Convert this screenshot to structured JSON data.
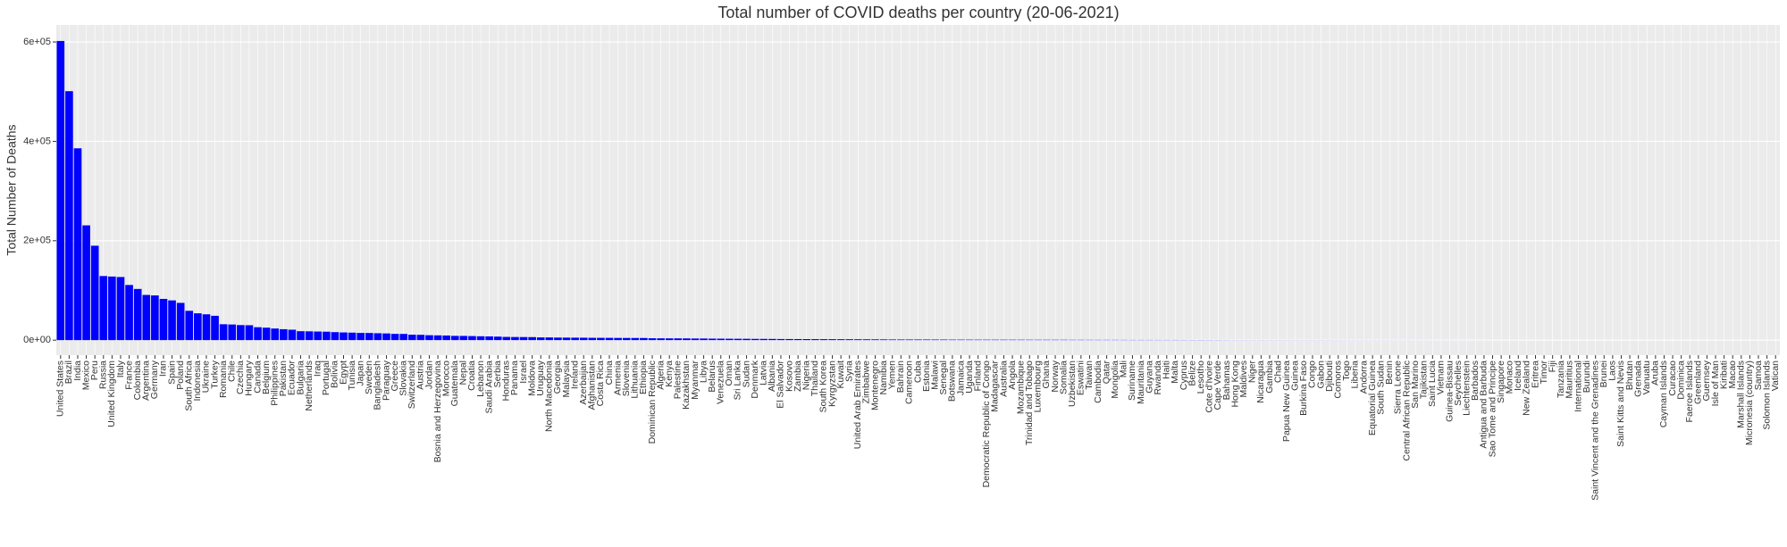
{
  "chart_data": {
    "type": "bar",
    "title": "Total number of COVID deaths per country (20-06-2021)",
    "y_label": "Total Number of Deaths",
    "color": "#0000FF",
    "grid": true,
    "ylim": [
      -30200,
      634200
    ],
    "yticks": [
      {
        "value": 0,
        "label": "0e+00"
      },
      {
        "value": 200000,
        "label": "2e+05"
      },
      {
        "value": 400000,
        "label": "4e+05"
      },
      {
        "value": 600000,
        "label": "6e+05"
      }
    ],
    "categories": [
      "United States",
      "Brazil",
      "India",
      "Mexico",
      "Peru",
      "Russia",
      "United Kingdom",
      "Italy",
      "France",
      "Colombia",
      "Argentina",
      "Germany",
      "Iran",
      "Spain",
      "Poland",
      "South Africa",
      "Indonesia",
      "Ukraine",
      "Turkey",
      "Romania",
      "Chile",
      "Czechia",
      "Hungary",
      "Canada",
      "Belgium",
      "Philippines",
      "Pakistan",
      "Ecuador",
      "Bulgaria",
      "Netherlands",
      "Iraq",
      "Portugal",
      "Bolivia",
      "Egypt",
      "Tunisia",
      "Japan",
      "Sweden",
      "Bangladesh",
      "Paraguay",
      "Greece",
      "Slovakia",
      "Switzerland",
      "Austria",
      "Jordan",
      "Bosnia and Herzegovina",
      "Morocco",
      "Guatemala",
      "Nepal",
      "Croatia",
      "Lebanon",
      "Saudi Arabia",
      "Serbia",
      "Honduras",
      "Panama",
      "Israel",
      "Moldova",
      "Uruguay",
      "North Macedonia",
      "Georgia",
      "Malaysia",
      "Ireland",
      "Azerbaijan",
      "Afghanistan",
      "Costa Rica",
      "China",
      "Armenia",
      "Slovenia",
      "Lithuania",
      "Ethiopia",
      "Dominican Republic",
      "Algeria",
      "Kenya",
      "Palestine",
      "Kazakhstan",
      "Myanmar",
      "Libya",
      "Belarus",
      "Venezuela",
      "Oman",
      "Sri Lanka",
      "Sudan",
      "Denmark",
      "Latvia",
      "Albania",
      "El Salvador",
      "Kosovo",
      "Zambia",
      "Nigeria",
      "Thailand",
      "South Korea",
      "Kyrgyzstan",
      "Kuwait",
      "Syria",
      "United Arab Emirates",
      "Zimbabwe",
      "Montenegro",
      "Namibia",
      "Yemen",
      "Bahrain",
      "Cameroon",
      "Cuba",
      "Estonia",
      "Malawi",
      "Senegal",
      "Botswana",
      "Jamaica",
      "Uganda",
      "Finland",
      "Democratic Republic of Congo",
      "Madagascar",
      "Australia",
      "Angola",
      "Mozambique",
      "Trinidad and Tobago",
      "Luxembourg",
      "Ghana",
      "Norway",
      "Somalia",
      "Uzbekistan",
      "Eswatini",
      "Taiwan",
      "Cambodia",
      "Qatar",
      "Mongolia",
      "Mali",
      "Suriname",
      "Mauritania",
      "Guyana",
      "Rwanda",
      "Haiti",
      "Malta",
      "Cyprus",
      "Belize",
      "Lesotho",
      "Cote d'Ivoire",
      "Cape Verde",
      "Bahamas",
      "Hong Kong",
      "Maldives",
      "Niger",
      "Nicaragua",
      "Gambia",
      "Chad",
      "Papua New Guinea",
      "Guinea",
      "Burkina Faso",
      "Congo",
      "Gabon",
      "Djibouti",
      "Comoros",
      "Togo",
      "Liberia",
      "Andorra",
      "Equatorial Guinea",
      "South Sudan",
      "Benin",
      "Sierra Leone",
      "Central African Republic",
      "San Marino",
      "Tajikistan",
      "Saint Lucia",
      "Vietnam",
      "Guinea-Bissau",
      "Seychelles",
      "Liechtenstein",
      "Barbados",
      "Antigua and Barbuda",
      "Sao Tome and Principe",
      "Singapore",
      "Monaco",
      "Iceland",
      "New Zealand",
      "Eritrea",
      "Timor",
      "Fiji",
      "Tanzania",
      "Mauritius",
      "International",
      "Burundi",
      "Saint Vincent and the Grenadines",
      "Brunei",
      "Laos",
      "Saint Kitts and Nevis",
      "Bhutan",
      "Grenada",
      "Vanuatu",
      "Aruba",
      "Cayman Islands",
      "Curacao",
      "Dominica",
      "Faeroe Islands",
      "Greenland",
      "Guernsey",
      "Isle of Man",
      "Kiribati",
      "Macao",
      "Marshall Islands",
      "Micronesia (country)",
      "Samoa",
      "Solomon Islands",
      "Vatican"
    ],
    "values": [
      602000,
      501000,
      386000,
      231000,
      190000,
      129000,
      128000,
      127000,
      111000,
      103000,
      91000,
      90000,
      83000,
      80000,
      75000,
      59000,
      54000,
      52000,
      49000,
      32000,
      31500,
      30300,
      30000,
      26000,
      25100,
      23400,
      22000,
      21000,
      18000,
      17700,
      17300,
      17000,
      16100,
      15500,
      15100,
      14500,
      14400,
      13900,
      13500,
      12600,
      12500,
      10900,
      10700,
      9900,
      9600,
      9300,
      8600,
      8500,
      8200,
      7800,
      7500,
      7100,
      6500,
      6300,
      6200,
      6100,
      5500,
      5450,
      5200,
      5100,
      5000,
      4900,
      4700,
      4650,
      4600,
      4450,
      4400,
      4350,
      4300,
      3800,
      3650,
      3600,
      3580,
      3500,
      3300,
      3250,
      3050,
      2950,
      2850,
      2750,
      2700,
      2530,
      2500,
      2450,
      2250,
      2200,
      2150,
      2100,
      2050,
      2000,
      1950,
      1900,
      1850,
      1750,
      1700,
      1620,
      1500,
      1350,
      1320,
      1310,
      1290,
      1270,
      1200,
      1170,
      1050,
      1040,
      1020,
      975,
      950,
      930,
      910,
      900,
      880,
      850,
      820,
      800,
      790,
      775,
      690,
      680,
      620,
      600,
      590,
      560,
      520,
      480,
      470,
      460,
      430,
      420,
      419,
      375,
      330,
      329,
      310,
      300,
      250,
      210,
      209,
      190,
      185,
      180,
      170,
      168,
      166,
      165,
      162,
      160,
      155,
      150,
      135,
      130,
      127,
      115,
      114,
      110,
      99,
      98,
      90,
      89,
      77,
      75,
      70,
      69,
      59,
      47,
      42,
      37,
      35,
      33,
      30,
      26,
      21,
      20,
      19,
      18,
      17,
      15,
      12,
      11,
      3,
      3,
      3,
      1,
      1,
      1,
      0,
      0,
      0,
      0,
      0,
      0,
      0,
      0,
      0,
      0,
      0,
      0,
      0,
      0,
      0
    ]
  }
}
